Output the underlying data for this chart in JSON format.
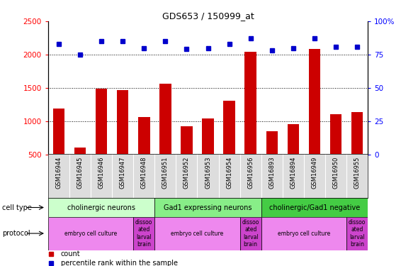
{
  "title": "GDS653 / 150999_at",
  "samples": [
    "GSM16944",
    "GSM16945",
    "GSM16946",
    "GSM16947",
    "GSM16948",
    "GSM16951",
    "GSM16952",
    "GSM16953",
    "GSM16954",
    "GSM16956",
    "GSM16893",
    "GSM16894",
    "GSM16949",
    "GSM16950",
    "GSM16955"
  ],
  "counts": [
    1185,
    600,
    1490,
    1470,
    1065,
    1560,
    920,
    1040,
    1305,
    2040,
    845,
    950,
    2085,
    1100,
    1140
  ],
  "percentile": [
    83,
    75,
    85,
    85,
    80,
    85,
    79,
    80,
    83,
    87,
    78,
    80,
    87,
    81,
    81
  ],
  "ylim_left": [
    500,
    2500
  ],
  "ylim_right": [
    0,
    100
  ],
  "yticks_left": [
    500,
    1000,
    1500,
    2000,
    2500
  ],
  "yticks_right": [
    0,
    25,
    50,
    75,
    100
  ],
  "bar_color": "#cc0000",
  "dot_color": "#0000cc",
  "cell_types": [
    {
      "label": "cholinergic neurons",
      "start": 0,
      "end": 5,
      "color": "#ccffcc"
    },
    {
      "label": "Gad1 expressing neurons",
      "start": 5,
      "end": 10,
      "color": "#88ee88"
    },
    {
      "label": "cholinergic/Gad1 negative",
      "start": 10,
      "end": 15,
      "color": "#44cc44"
    }
  ],
  "protocols": [
    {
      "label": "embryo cell culture",
      "start": 0,
      "end": 4,
      "color": "#ee88ee"
    },
    {
      "label": "dissoo\nated\nlarval\nbrain",
      "start": 4,
      "end": 5,
      "color": "#cc44cc"
    },
    {
      "label": "embryo cell culture",
      "start": 5,
      "end": 9,
      "color": "#ee88ee"
    },
    {
      "label": "dissoo\nated\nlarval\nbrain",
      "start": 9,
      "end": 10,
      "color": "#cc44cc"
    },
    {
      "label": "embryo cell culture",
      "start": 10,
      "end": 14,
      "color": "#ee88ee"
    },
    {
      "label": "dissoo\nated\nlarval\nbrain",
      "start": 14,
      "end": 15,
      "color": "#cc44cc"
    }
  ],
  "grid_values": [
    1000,
    1500,
    2000
  ],
  "fig_width": 5.9,
  "fig_height": 3.75,
  "dpi": 100
}
